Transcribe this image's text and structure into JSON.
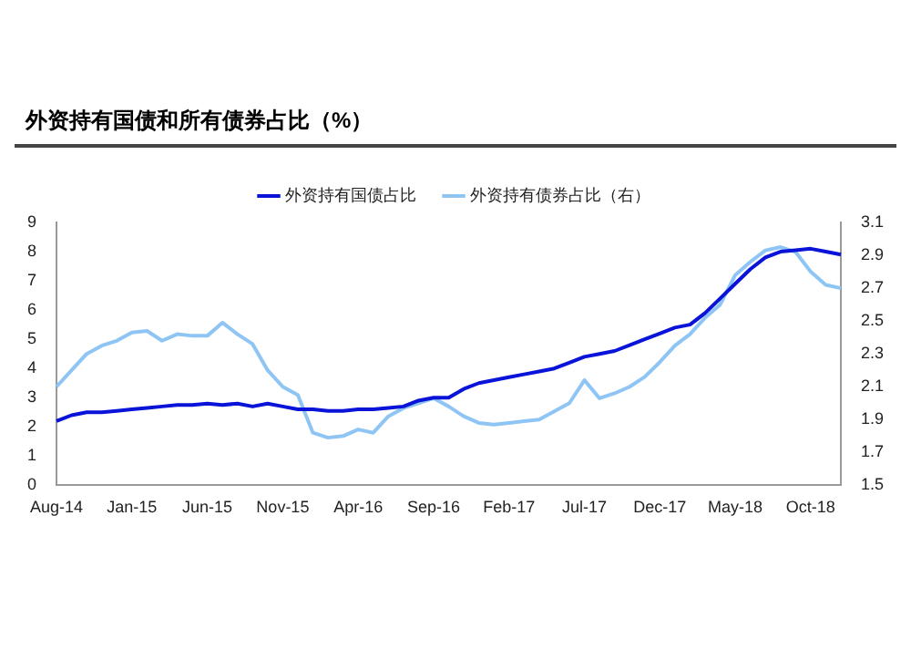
{
  "chart_data": {
    "type": "line",
    "title": "外资持有国债和所有债券占比（%）",
    "categories": [
      "Aug-14",
      null,
      null,
      null,
      null,
      "Jan-15",
      null,
      null,
      null,
      null,
      "Jun-15",
      null,
      null,
      null,
      null,
      "Nov-15",
      null,
      null,
      null,
      null,
      "Apr-16",
      null,
      null,
      null,
      null,
      "Sep-16",
      null,
      null,
      null,
      null,
      "Feb-17",
      null,
      null,
      null,
      null,
      "Jul-17",
      null,
      null,
      null,
      null,
      "Dec-17",
      null,
      null,
      null,
      null,
      "May-18",
      null,
      null,
      null,
      null,
      "Oct-18",
      null,
      null
    ],
    "series": [
      {
        "name": "外资持有国债占比",
        "color": "#0a14d8",
        "values": [
          2.2,
          2.4,
          2.5,
          2.5,
          2.55,
          2.6,
          2.65,
          2.7,
          2.75,
          2.75,
          2.8,
          2.75,
          2.8,
          2.7,
          2.8,
          2.7,
          2.6,
          2.6,
          2.55,
          2.55,
          2.6,
          2.6,
          2.65,
          2.7,
          2.9,
          3.0,
          3.0,
          3.3,
          3.5,
          3.6,
          3.7,
          3.8,
          3.9,
          4.0,
          4.2,
          4.4,
          4.5,
          4.6,
          4.8,
          5.0,
          5.2,
          5.4,
          5.5,
          5.9,
          6.4,
          6.9,
          7.4,
          7.8,
          8.0,
          8.05,
          8.1,
          8.0,
          7.9
        ]
      },
      {
        "name": "外资持有债券占比（右）",
        "color": "#8ec5f5",
        "axis": "y2",
        "values": [
          2.1,
          2.2,
          2.3,
          2.35,
          2.38,
          2.43,
          2.44,
          2.38,
          2.42,
          2.41,
          2.41,
          2.49,
          2.42,
          2.36,
          2.2,
          2.1,
          2.05,
          1.82,
          1.79,
          1.8,
          1.84,
          1.82,
          1.92,
          1.97,
          2.0,
          2.03,
          1.98,
          1.92,
          1.88,
          1.87,
          1.88,
          1.89,
          1.9,
          1.95,
          2.0,
          2.14,
          2.03,
          2.06,
          2.1,
          2.16,
          2.25,
          2.35,
          2.42,
          2.52,
          2.6,
          2.78,
          2.86,
          2.93,
          2.95,
          2.92,
          2.8,
          2.72,
          2.7
        ]
      }
    ],
    "ylim": [
      0,
      9
    ],
    "yticks": [
      0,
      1,
      2,
      3,
      4,
      5,
      6,
      7,
      8,
      9
    ],
    "y2lim": [
      1.5,
      3.1
    ],
    "y2ticks": [
      1.5,
      1.7,
      1.9,
      2.1,
      2.3,
      2.5,
      2.7,
      2.9,
      3.1
    ],
    "grid": false,
    "legend": "top",
    "marker": "none",
    "line_style": "solid"
  }
}
